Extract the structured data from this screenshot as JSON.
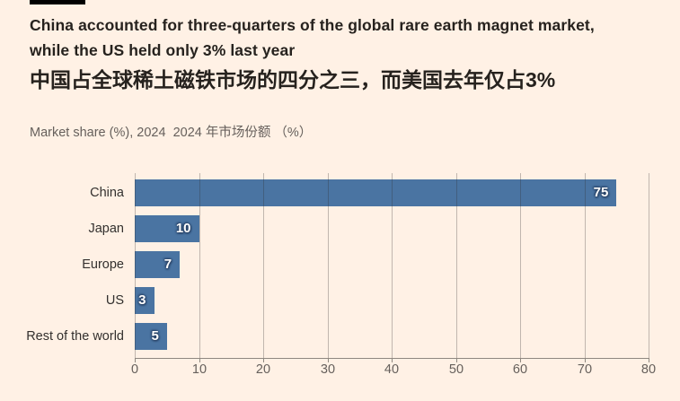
{
  "header": {
    "title_lines": [
      "China accounted for three-quarters of the global rare earth magnet market,",
      "while the US held only 3% last year"
    ],
    "title_cn": "中国占全球稀土磁铁市场的四分之三，而美国去年仅占3%",
    "subtitle": "Market share (%), 2024  2024 年市场份额 （%）"
  },
  "colors": {
    "background": "#FFF1E5",
    "bar": "#4A74A2",
    "title_text": "#26221E",
    "label_text": "#33302E",
    "muted_text": "#66605C",
    "axis_line": "#8F8880",
    "gridline": "rgba(51,48,46,0.30)",
    "value_label_text": "#FFFFFF",
    "value_label_halo": "rgba(36,60,94,0.85)",
    "top_rule": "#000000"
  },
  "chart_data": {
    "type": "bar",
    "orientation": "horizontal",
    "title": "China accounted for three-quarters of the global rare earth magnet market, while the US held only 3% last year",
    "title_cn": "中国占全球稀土磁铁市场的四分之三，而美国去年仅占3%",
    "subtitle": "Market share (%), 2024  2024 年市场份额 （%）",
    "categories": [
      "China",
      "Japan",
      "Europe",
      "US",
      "Rest of the world"
    ],
    "values": [
      75,
      10,
      7,
      3,
      5
    ],
    "xlabel": "",
    "ylabel": "",
    "xlim": [
      0,
      80
    ],
    "xticks": [
      0,
      10,
      20,
      30,
      40,
      50,
      60,
      70,
      80
    ],
    "grid": true,
    "legend": false,
    "value_labels_shown": true
  }
}
